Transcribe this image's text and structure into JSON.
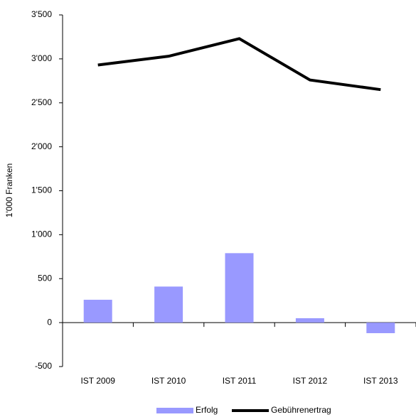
{
  "chart_data": {
    "type": "combo",
    "y_label": "1'000 Franken",
    "categories": [
      "IST 2009",
      "IST 2010",
      "IST 2011",
      "IST 2012",
      "IST 2013"
    ],
    "series": [
      {
        "name": "Erfolg",
        "type": "bar",
        "color": "#9999ff",
        "values": [
          260,
          410,
          790,
          50,
          -120
        ]
      },
      {
        "name": "Gebührenertrag",
        "type": "line",
        "color": "#000000",
        "values": [
          2930,
          3030,
          3230,
          2760,
          2650
        ]
      }
    ],
    "ylim": [
      -500,
      3500
    ],
    "yticks": [
      -500,
      0,
      500,
      {
        "value": 1000,
        "label": "1'000"
      },
      {
        "value": 1500,
        "label": "1'500"
      },
      {
        "value": 2000,
        "label": "2'000"
      },
      {
        "value": 2500,
        "label": "2'500"
      },
      {
        "value": 3000,
        "label": "3'000"
      },
      {
        "value": 3500,
        "label": "3'500"
      }
    ],
    "grid": false,
    "legend": "bottom"
  }
}
